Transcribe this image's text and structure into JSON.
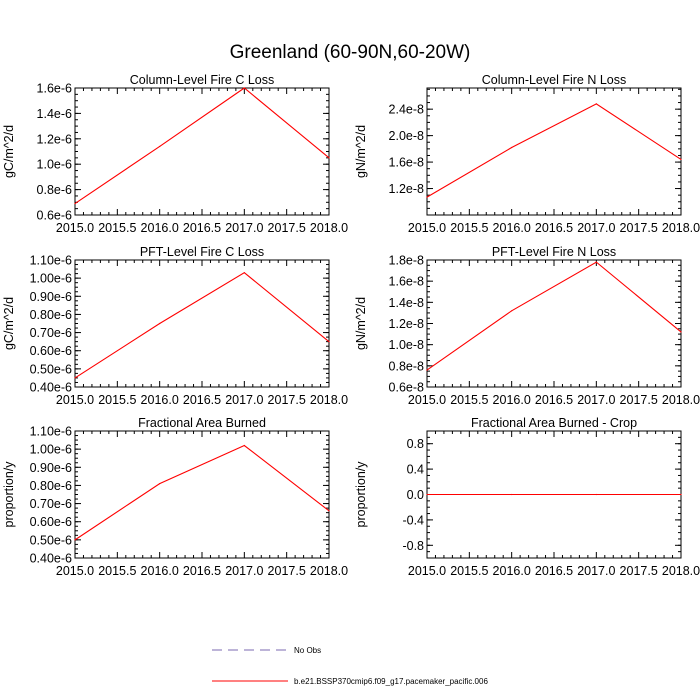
{
  "figure": {
    "title": "Greenland (60-90N,60-20W)",
    "line_color": "#ff0000",
    "obs_color": "#7b68b0"
  },
  "legend": {
    "entries": [
      {
        "label": "No Obs",
        "style": "dashed",
        "color": "#7b68b0"
      },
      {
        "label": "b.e21.BSSP370cmip6.f09_g17.pacemaker_pacific.006",
        "style": "solid",
        "color": "#ff0000"
      }
    ]
  },
  "chart_data": [
    {
      "type": "line",
      "title": "Column-Level Fire C Loss",
      "ylabel": "gC/m^2/d",
      "x": [
        2015.0,
        2016.0,
        2017.0,
        2018.0
      ],
      "xlim": [
        2015.0,
        2018.0
      ],
      "xticks": [
        "2015.0",
        "2015.5",
        "2016.0",
        "2016.5",
        "2017.0",
        "2017.5",
        "2018.0"
      ],
      "ylim": [
        6e-07,
        1.6e-06
      ],
      "yticks": [
        6e-07,
        8e-07,
        1e-06,
        1.2e-06,
        1.4e-06,
        1.6e-06
      ],
      "yticklabels": [
        "0.6e-6",
        "0.8e-6",
        "1.0e-6",
        "1.2e-6",
        "1.4e-6",
        "1.6e-6"
      ],
      "series": [
        {
          "values": [
            6.9e-07,
            1.14e-06,
            1.6e-06,
            1.05e-06
          ]
        }
      ]
    },
    {
      "type": "line",
      "title": "Column-Level Fire N Loss",
      "ylabel": "gN/m^2/d",
      "x": [
        2015.0,
        2016.0,
        2017.0,
        2018.0
      ],
      "xlim": [
        2015.0,
        2018.0
      ],
      "xticks": [
        "2015.0",
        "2015.5",
        "2016.0",
        "2016.5",
        "2017.0",
        "2017.5",
        "2018.0"
      ],
      "ylim": [
        8e-09,
        2.72e-08
      ],
      "yticks": [
        1.2e-08,
        1.6e-08,
        2e-08,
        2.4e-08
      ],
      "yticklabels": [
        "1.2e-8",
        "1.6e-8",
        "2.0e-8",
        "2.4e-8"
      ],
      "series": [
        {
          "values": [
            1.07e-08,
            1.82e-08,
            2.48e-08,
            1.64e-08
          ]
        }
      ]
    },
    {
      "type": "line",
      "title": "PFT-Level Fire C Loss",
      "ylabel": "gC/m^2/d",
      "x": [
        2015.0,
        2016.0,
        2017.0,
        2018.0
      ],
      "xlim": [
        2015.0,
        2018.0
      ],
      "xticks": [
        "2015.0",
        "2015.5",
        "2016.0",
        "2016.5",
        "2017.0",
        "2017.5",
        "2018.0"
      ],
      "ylim": [
        4e-07,
        1.1e-06
      ],
      "yticks": [
        4e-07,
        5e-07,
        6e-07,
        7e-07,
        8e-07,
        9e-07,
        1e-06,
        1.1e-06
      ],
      "yticklabels": [
        "0.40e-6",
        "0.50e-6",
        "0.60e-6",
        "0.70e-6",
        "0.80e-6",
        "0.90e-6",
        "1.00e-6",
        "1.10e-6"
      ],
      "series": [
        {
          "values": [
            4.5e-07,
            7.5e-07,
            1.03e-06,
            6.5e-07
          ]
        }
      ]
    },
    {
      "type": "line",
      "title": "PFT-Level Fire N Loss",
      "ylabel": "gN/m^2/d",
      "x": [
        2015.0,
        2016.0,
        2017.0,
        2018.0
      ],
      "xlim": [
        2015.0,
        2018.0
      ],
      "xticks": [
        "2015.0",
        "2015.5",
        "2016.0",
        "2016.5",
        "2017.0",
        "2017.5",
        "2018.0"
      ],
      "ylim": [
        6e-09,
        1.8e-08
      ],
      "yticks": [
        6e-09,
        8e-09,
        1e-08,
        1.2e-08,
        1.4e-08,
        1.6e-08,
        1.8e-08
      ],
      "yticklabels": [
        "0.6e-8",
        "0.8e-8",
        "1.0e-8",
        "1.2e-8",
        "1.4e-8",
        "1.6e-8",
        "1.8e-8"
      ],
      "series": [
        {
          "values": [
            7.6e-09,
            1.32e-08,
            1.78e-08,
            1.12e-08
          ]
        }
      ]
    },
    {
      "type": "line",
      "title": "Fractional Area Burned",
      "ylabel": "proportion/y",
      "x": [
        2015.0,
        2016.0,
        2017.0,
        2018.0
      ],
      "xlim": [
        2015.0,
        2018.0
      ],
      "xticks": [
        "2015.0",
        "2015.5",
        "2016.0",
        "2016.5",
        "2017.0",
        "2017.5",
        "2018.0"
      ],
      "ylim": [
        4e-07,
        1.1e-06
      ],
      "yticks": [
        4e-07,
        5e-07,
        6e-07,
        7e-07,
        8e-07,
        9e-07,
        1e-06,
        1.1e-06
      ],
      "yticklabels": [
        "0.40e-6",
        "0.50e-6",
        "0.60e-6",
        "0.70e-6",
        "0.80e-6",
        "0.90e-6",
        "1.00e-6",
        "1.10e-6"
      ],
      "series": [
        {
          "values": [
            5e-07,
            8.1e-07,
            1.02e-06,
            6.6e-07
          ]
        }
      ]
    },
    {
      "type": "line",
      "title": "Fractional Area Burned - Crop",
      "ylabel": "proportion/y",
      "x": [
        2015.0,
        2016.0,
        2017.0,
        2018.0
      ],
      "xlim": [
        2015.0,
        2018.0
      ],
      "xticks": [
        "2015.0",
        "2015.5",
        "2016.0",
        "2016.5",
        "2017.0",
        "2017.5",
        "2018.0"
      ],
      "ylim": [
        -1.0,
        1.0
      ],
      "yticks": [
        -0.8,
        -0.4,
        0.0,
        0.4,
        0.8
      ],
      "yticklabels": [
        "-0.8",
        "-0.4",
        "0.0",
        "0.4",
        "0.8"
      ],
      "series": [
        {
          "values": [
            0.0,
            0.0,
            0.0,
            0.0
          ]
        }
      ]
    }
  ]
}
